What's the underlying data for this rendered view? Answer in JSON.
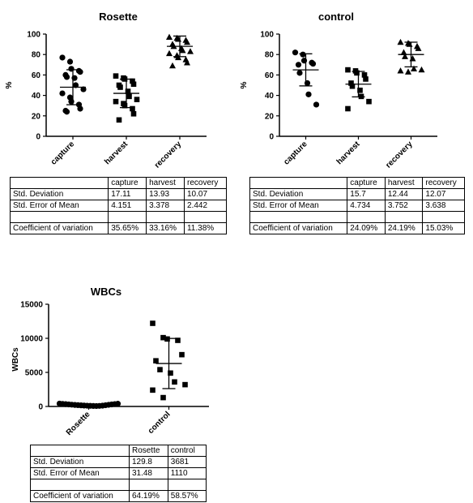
{
  "chart_data": [
    {
      "id": "rosette",
      "type": "scatter",
      "title": "Rosette",
      "xlabel": "",
      "ylabel": "%",
      "ylim": [
        0,
        100
      ],
      "yticks": [
        0,
        20,
        40,
        60,
        80,
        100
      ],
      "categories": [
        "capture",
        "harvest",
        "recovery"
      ],
      "marker": [
        "circle",
        "square",
        "triangle"
      ],
      "summary": [
        {
          "mean": 48,
          "sd": 17.11
        },
        {
          "mean": 42,
          "sd": 13.93
        },
        {
          "mean": 88,
          "sd": 10.07
        }
      ],
      "points": [
        [
          77,
          73,
          66,
          64,
          63,
          60,
          58,
          57,
          50,
          46,
          42,
          38,
          34,
          31,
          27,
          25,
          24
        ],
        [
          59,
          57,
          56,
          54,
          51,
          50,
          48,
          44,
          39,
          36,
          34,
          32,
          30,
          27,
          22,
          16
        ],
        [
          97,
          96,
          95,
          94,
          92,
          90,
          88,
          86,
          84,
          83,
          81,
          79,
          77,
          75,
          72,
          69
        ]
      ]
    },
    {
      "id": "control",
      "type": "scatter",
      "title": "control",
      "xlabel": "",
      "ylabel": "%",
      "ylim": [
        0,
        100
      ],
      "yticks": [
        0,
        20,
        40,
        60,
        80,
        100
      ],
      "categories": [
        "capture",
        "harvest",
        "recovery"
      ],
      "marker": [
        "circle",
        "square",
        "triangle"
      ],
      "summary": [
        {
          "mean": 65,
          "sd": 15.7
        },
        {
          "mean": 51,
          "sd": 12.44
        },
        {
          "mean": 80,
          "sd": 12.07
        }
      ],
      "points": [
        [
          82,
          80,
          74,
          72,
          71,
          70,
          62,
          52,
          41,
          31
        ],
        [
          65,
          64,
          62,
          60,
          56,
          52,
          49,
          45,
          39,
          34,
          27
        ],
        [
          92,
          91,
          90,
          88,
          86,
          82,
          78,
          76,
          66,
          65,
          64,
          63
        ]
      ]
    },
    {
      "id": "wbcs",
      "type": "scatter",
      "title": "WBCs",
      "xlabel": "",
      "ylabel": "WBCs",
      "ylim": [
        0,
        15000
      ],
      "yticks": [
        0,
        5000,
        10000,
        15000
      ],
      "categories": [
        "Rosette",
        "control"
      ],
      "marker": [
        "circle",
        "square"
      ],
      "summary": [
        {
          "mean": 200,
          "sd": 129.8
        },
        {
          "mean": 6300,
          "sd": 3681
        }
      ],
      "points": [
        [
          420,
          380,
          340,
          300,
          260,
          220,
          190,
          160,
          130,
          110,
          90,
          70,
          60,
          80,
          120,
          180,
          240,
          300,
          350,
          400
        ],
        [
          12200,
          10100,
          9900,
          9700,
          7600,
          6700,
          5400,
          4900,
          3600,
          3200,
          2400,
          1300
        ]
      ]
    }
  ],
  "tables": {
    "rosette": {
      "header": [
        "",
        "capture",
        "harvest",
        "recovery"
      ],
      "rows": [
        [
          "Std. Deviation",
          "17.11",
          "13.93",
          "10.07"
        ],
        [
          "Std. Error of Mean",
          "4.151",
          "3.378",
          "2.442"
        ],
        [
          "",
          "",
          "",
          ""
        ],
        [
          "Coefficient of variation",
          "35.65%",
          "33.16%",
          "11.38%"
        ]
      ]
    },
    "control": {
      "header": [
        "",
        "capture",
        "harvest",
        "recovery"
      ],
      "rows": [
        [
          "Std. Deviation",
          "15.7",
          "12.44",
          "12.07"
        ],
        [
          "Std. Error of Mean",
          "4.734",
          "3.752",
          "3.638"
        ],
        [
          "",
          "",
          "",
          ""
        ],
        [
          "Coefficient of variation",
          "24.09%",
          "24.19%",
          "15.03%"
        ]
      ]
    },
    "wbcs": {
      "header": [
        "",
        "Rosette",
        "control"
      ],
      "rows": [
        [
          "Std. Deviation",
          "129.8",
          "3681"
        ],
        [
          "Std. Error of Mean",
          "31.48",
          "1110"
        ],
        [
          "",
          "",
          ""
        ],
        [
          "Coefficient of variation",
          "64.19%",
          "58.57%"
        ]
      ]
    }
  }
}
